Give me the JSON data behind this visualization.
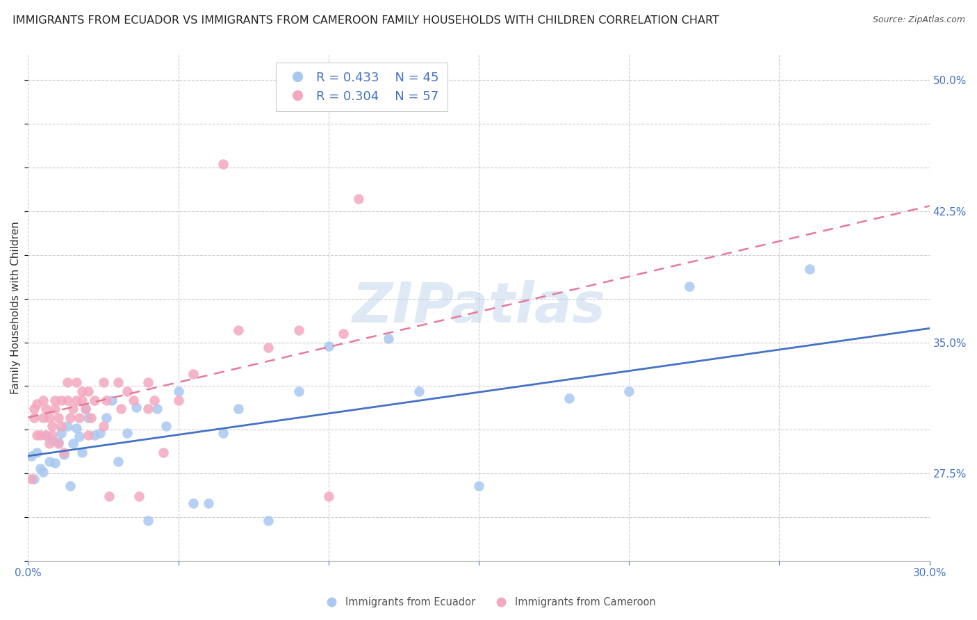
{
  "title": "IMMIGRANTS FROM ECUADOR VS IMMIGRANTS FROM CAMEROON FAMILY HOUSEHOLDS WITH CHILDREN CORRELATION CHART",
  "source": "Source: ZipAtlas.com",
  "ylabel": "Family Households with Children",
  "xlim": [
    0.0,
    0.3
  ],
  "ylim": [
    0.225,
    0.515
  ],
  "right_yticks": [
    0.275,
    0.35,
    0.425,
    0.5
  ],
  "right_ytick_labels": [
    "27.5%",
    "35.0%",
    "42.5%",
    "50.0%"
  ],
  "ecuador_R": 0.433,
  "ecuador_N": 45,
  "cameroon_R": 0.304,
  "cameroon_N": 57,
  "ecuador_color": "#A8C8F0",
  "cameroon_color": "#F4A8C0",
  "ecuador_line_color": "#4472C4",
  "cameroon_line_color": "#E87898",
  "watermark": "ZIPatlas",
  "background_color": "#FFFFFF",
  "grid_color": "#CCCCCC",
  "title_fontsize": 11.5,
  "axis_label_fontsize": 11,
  "tick_fontsize": 11,
  "right_tick_color": "#4472C4",
  "bottom_tick_color": "#4472C4",
  "ecuador_x": [
    0.001,
    0.002,
    0.003,
    0.004,
    0.005,
    0.006,
    0.007,
    0.008,
    0.009,
    0.01,
    0.011,
    0.012,
    0.013,
    0.014,
    0.015,
    0.016,
    0.017,
    0.018,
    0.019,
    0.02,
    0.022,
    0.024,
    0.026,
    0.028,
    0.03,
    0.033,
    0.036,
    0.04,
    0.043,
    0.046,
    0.05,
    0.055,
    0.06,
    0.065,
    0.07,
    0.08,
    0.09,
    0.1,
    0.12,
    0.13,
    0.15,
    0.18,
    0.2,
    0.22,
    0.26
  ],
  "ecuador_y": [
    0.285,
    0.272,
    0.287,
    0.278,
    0.276,
    0.297,
    0.282,
    0.294,
    0.281,
    0.293,
    0.298,
    0.286,
    0.302,
    0.268,
    0.292,
    0.301,
    0.296,
    0.287,
    0.312,
    0.307,
    0.297,
    0.298,
    0.307,
    0.317,
    0.282,
    0.298,
    0.313,
    0.248,
    0.312,
    0.302,
    0.322,
    0.258,
    0.258,
    0.298,
    0.312,
    0.248,
    0.322,
    0.348,
    0.352,
    0.322,
    0.268,
    0.318,
    0.322,
    0.382,
    0.392
  ],
  "cameroon_x": [
    0.001,
    0.002,
    0.002,
    0.003,
    0.003,
    0.004,
    0.005,
    0.005,
    0.006,
    0.006,
    0.007,
    0.007,
    0.008,
    0.008,
    0.009,
    0.009,
    0.01,
    0.01,
    0.011,
    0.011,
    0.012,
    0.013,
    0.013,
    0.014,
    0.015,
    0.016,
    0.016,
    0.017,
    0.018,
    0.018,
    0.019,
    0.02,
    0.02,
    0.021,
    0.022,
    0.025,
    0.025,
    0.026,
    0.027,
    0.03,
    0.031,
    0.033,
    0.035,
    0.037,
    0.04,
    0.04,
    0.042,
    0.045,
    0.05,
    0.055,
    0.065,
    0.07,
    0.08,
    0.09,
    0.1,
    0.105,
    0.11
  ],
  "cameroon_y": [
    0.272,
    0.312,
    0.307,
    0.297,
    0.315,
    0.297,
    0.307,
    0.317,
    0.297,
    0.312,
    0.292,
    0.307,
    0.302,
    0.297,
    0.312,
    0.317,
    0.292,
    0.307,
    0.302,
    0.317,
    0.287,
    0.317,
    0.327,
    0.307,
    0.312,
    0.317,
    0.327,
    0.307,
    0.317,
    0.322,
    0.312,
    0.297,
    0.322,
    0.307,
    0.317,
    0.327,
    0.302,
    0.317,
    0.262,
    0.327,
    0.312,
    0.322,
    0.317,
    0.262,
    0.327,
    0.312,
    0.317,
    0.287,
    0.317,
    0.332,
    0.452,
    0.357,
    0.347,
    0.357,
    0.262,
    0.355,
    0.432
  ],
  "ecuador_line_x": [
    0.0,
    0.3
  ],
  "ecuador_line_y": [
    0.285,
    0.358
  ],
  "cameroon_line_x": [
    0.0,
    0.3
  ],
  "cameroon_line_y": [
    0.307,
    0.428
  ]
}
